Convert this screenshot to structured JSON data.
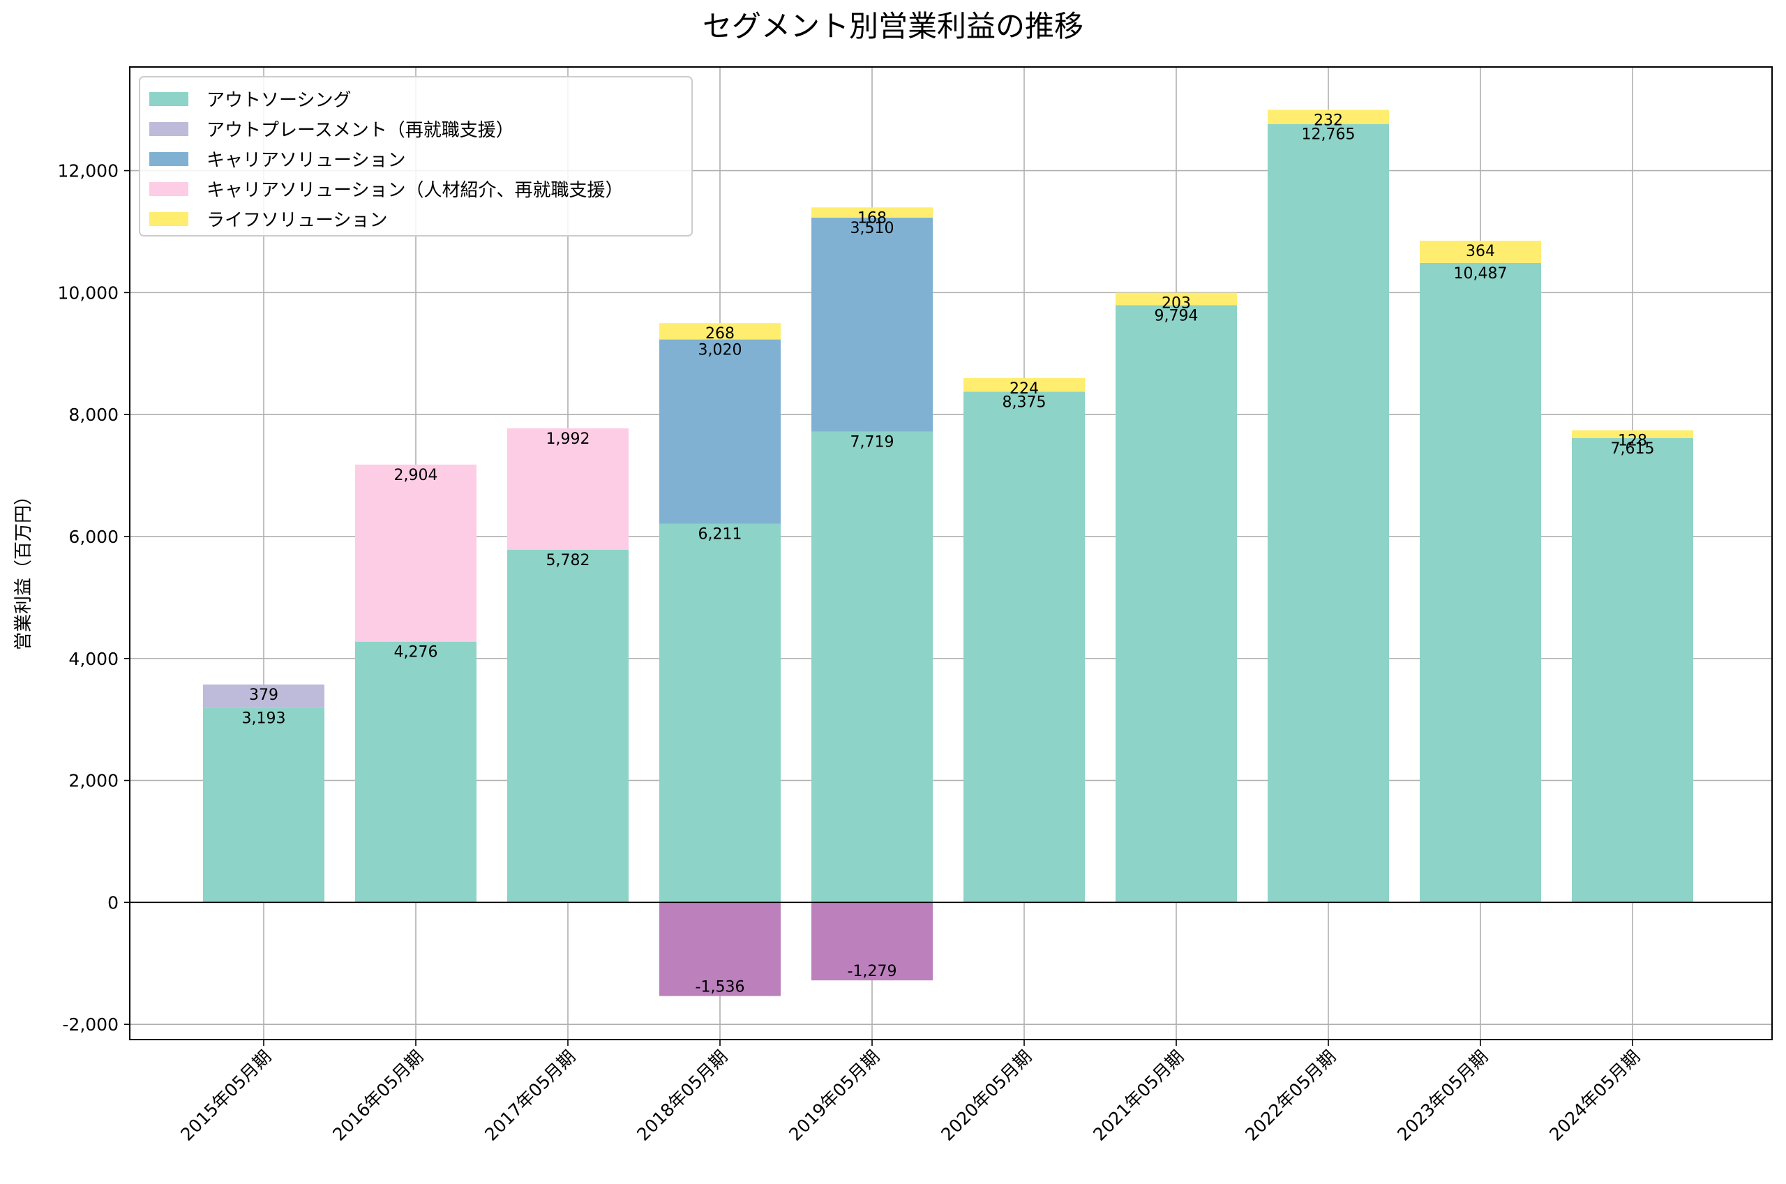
{
  "chart_data": {
    "type": "bar",
    "stacked": true,
    "title": "セグメント別営業利益の推移",
    "ylabel": "営業利益（百万円）",
    "xlabel": "",
    "ylim": [
      -2250,
      13700
    ],
    "yticks": [
      -2000,
      0,
      2000,
      4000,
      6000,
      8000,
      10000,
      12000
    ],
    "ytick_labels": [
      "-2,000",
      "0",
      "2,000",
      "4,000",
      "6,000",
      "8,000",
      "10,000",
      "12,000"
    ],
    "grid": true,
    "legend_position": "top-left",
    "categories": [
      "2015年05月期",
      "2016年05月期",
      "2017年05月期",
      "2018年05月期",
      "2019年05月期",
      "2020年05月期",
      "2021年05月期",
      "2022年05月期",
      "2023年05月期",
      "2024年05月期"
    ],
    "series": [
      {
        "name": "アウトソーシング",
        "color": "#8dd3c7",
        "values": [
          3193,
          4276,
          5782,
          6211,
          7719,
          8375,
          9794,
          12765,
          10487,
          7615
        ]
      },
      {
        "name": "アウトプレースメント（再就職支援）",
        "color": "#bebada",
        "values": [
          379,
          null,
          null,
          null,
          null,
          null,
          null,
          null,
          null,
          null
        ]
      },
      {
        "name": "キャリアソリューション",
        "color": "#80b1d3",
        "values": [
          null,
          null,
          null,
          3020,
          3510,
          null,
          null,
          null,
          null,
          null
        ]
      },
      {
        "name": "キャリアソリューション（人材紹介、再就職支援）",
        "color": "#fccde5",
        "values": [
          null,
          2904,
          1992,
          null,
          null,
          null,
          null,
          null,
          null,
          null
        ]
      },
      {
        "name": "ライフソリューション",
        "color": "#ffed6f",
        "values": [
          null,
          null,
          null,
          268,
          168,
          224,
          203,
          232,
          364,
          128
        ]
      }
    ],
    "negative_values": {
      "color": "#bc80bd",
      "values": [
        null,
        null,
        null,
        -1536,
        -1279,
        null,
        null,
        null,
        null,
        null
      ]
    },
    "value_labels": [
      [
        "3,193",
        "379"
      ],
      [
        "4,276",
        "2,904"
      ],
      [
        "5,782",
        "1,992"
      ],
      [
        "6,211",
        "3,020",
        "268",
        "-1,536"
      ],
      [
        "7,719",
        "3,510",
        "168",
        "-1,279"
      ],
      [
        "8,375",
        "224"
      ],
      [
        "9,794",
        "203"
      ],
      [
        "12,765",
        "232"
      ],
      [
        "10,487",
        "364"
      ],
      [
        "7,615",
        "128"
      ]
    ]
  }
}
